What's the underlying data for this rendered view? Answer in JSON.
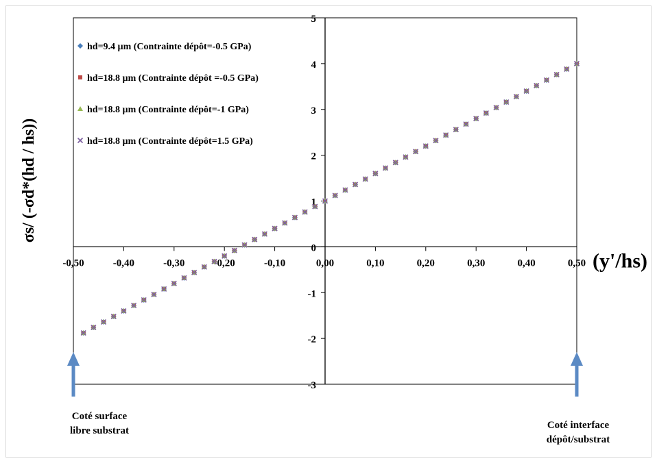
{
  "chart_data": {
    "type": "scatter",
    "title": "",
    "xlabel": "(y'/hs)",
    "ylabel": "σs/ (-σd*(hd / hs))",
    "xlim": [
      -0.5,
      0.5
    ],
    "ylim": [
      -3,
      5
    ],
    "x_ticks": [
      "-0,50",
      "-0,40",
      "-0,30",
      "-0,20",
      "-0,10",
      "0,00",
      "0,10",
      "0,20",
      "0,30",
      "0,40",
      "0,50"
    ],
    "y_ticks": [
      "-3",
      "-2",
      "-1",
      "0",
      "1",
      "2",
      "3",
      "4",
      "5"
    ],
    "grid": false,
    "legend_position": "top-left",
    "x": [
      -0.48,
      -0.46,
      -0.44,
      -0.42,
      -0.4,
      -0.38,
      -0.36,
      -0.34,
      -0.32,
      -0.3,
      -0.28,
      -0.26,
      -0.24,
      -0.22,
      -0.2,
      -0.18,
      -0.16,
      -0.14,
      -0.12,
      -0.1,
      -0.08,
      -0.06,
      -0.04,
      -0.02,
      0.0,
      0.02,
      0.04,
      0.06,
      0.08,
      0.1,
      0.12,
      0.14,
      0.16,
      0.18,
      0.2,
      0.22,
      0.24,
      0.26,
      0.28,
      0.3,
      0.32,
      0.34,
      0.36,
      0.38,
      0.4,
      0.42,
      0.44,
      0.46,
      0.48,
      0.5
    ],
    "series": [
      {
        "name": "hd=9.4 µm (Contrainte dépôt=-0.5 GPa)",
        "marker": "diamond",
        "color": "#4a7ebb",
        "values": [
          -1.88,
          -1.76,
          -1.64,
          -1.52,
          -1.4,
          -1.28,
          -1.16,
          -1.04,
          -0.92,
          -0.8,
          -0.68,
          -0.56,
          -0.44,
          -0.32,
          -0.2,
          -0.08,
          0.04,
          0.16,
          0.28,
          0.4,
          0.52,
          0.64,
          0.76,
          0.88,
          1.0,
          1.12,
          1.24,
          1.36,
          1.48,
          1.6,
          1.72,
          1.84,
          1.96,
          2.08,
          2.2,
          2.32,
          2.44,
          2.56,
          2.68,
          2.8,
          2.92,
          3.04,
          3.16,
          3.28,
          3.4,
          3.52,
          3.64,
          3.76,
          3.88,
          4.0
        ]
      },
      {
        "name": "hd=18.8 µm (Contrainte dépôt =-0.5 GPa)",
        "marker": "square",
        "color": "#be4b48",
        "values": [
          -1.88,
          -1.76,
          -1.64,
          -1.52,
          -1.4,
          -1.28,
          -1.16,
          -1.04,
          -0.92,
          -0.8,
          -0.68,
          -0.56,
          -0.44,
          -0.32,
          -0.2,
          -0.08,
          0.04,
          0.16,
          0.28,
          0.4,
          0.52,
          0.64,
          0.76,
          0.88,
          1.0,
          1.12,
          1.24,
          1.36,
          1.48,
          1.6,
          1.72,
          1.84,
          1.96,
          2.08,
          2.2,
          2.32,
          2.44,
          2.56,
          2.68,
          2.8,
          2.92,
          3.04,
          3.16,
          3.28,
          3.4,
          3.52,
          3.64,
          3.76,
          3.88,
          4.0
        ]
      },
      {
        "name": "hd=18.8 µm (Contrainte dépôt=-1 GPa)",
        "marker": "triangle",
        "color": "#98b954",
        "values": [
          -1.88,
          -1.76,
          -1.64,
          -1.52,
          -1.4,
          -1.28,
          -1.16,
          -1.04,
          -0.92,
          -0.8,
          -0.68,
          -0.56,
          -0.44,
          -0.32,
          -0.2,
          -0.08,
          0.04,
          0.16,
          0.28,
          0.4,
          0.52,
          0.64,
          0.76,
          0.88,
          1.0,
          1.12,
          1.24,
          1.36,
          1.48,
          1.6,
          1.72,
          1.84,
          1.96,
          2.08,
          2.2,
          2.32,
          2.44,
          2.56,
          2.68,
          2.8,
          2.92,
          3.04,
          3.16,
          3.28,
          3.4,
          3.52,
          3.64,
          3.76,
          3.88,
          4.0
        ]
      },
      {
        "name": "hd=18.8 µm (Contrainte dépôt=1.5 GPa)",
        "marker": "x",
        "color": "#7d60a0",
        "values": [
          -1.88,
          -1.76,
          -1.64,
          -1.52,
          -1.4,
          -1.28,
          -1.16,
          -1.04,
          -0.92,
          -0.8,
          -0.68,
          -0.56,
          -0.44,
          -0.32,
          -0.2,
          -0.08,
          0.04,
          0.16,
          0.28,
          0.4,
          0.52,
          0.64,
          0.76,
          0.88,
          1.0,
          1.12,
          1.24,
          1.36,
          1.48,
          1.6,
          1.72,
          1.84,
          1.96,
          2.08,
          2.2,
          2.32,
          2.44,
          2.56,
          2.68,
          2.8,
          2.92,
          3.04,
          3.16,
          3.28,
          3.4,
          3.52,
          3.64,
          3.76,
          3.88,
          4.0
        ]
      }
    ],
    "annotations": [
      {
        "lines": [
          "Coté surface",
          "libre substrat"
        ],
        "x": -0.5,
        "arrow_color": "#5b8ac4"
      },
      {
        "lines": [
          "Coté interface",
          "dépôt/substrat"
        ],
        "x": 0.5,
        "arrow_color": "#5b8ac4"
      }
    ]
  }
}
